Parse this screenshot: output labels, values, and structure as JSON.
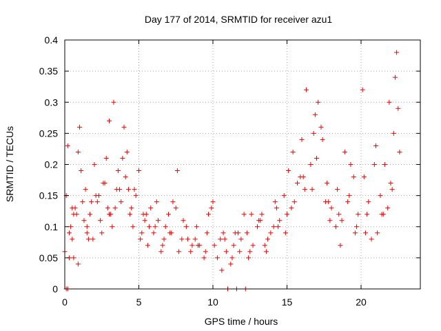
{
  "chart_data": {
    "type": "scatter",
    "title": "Day 177 of 2014, SRMTID for receiver azu1",
    "xlabel": "GPS time / hours",
    "ylabel": "SRMTID / TECUs",
    "xlim": [
      0,
      24
    ],
    "ylim": [
      0,
      0.4
    ],
    "x_ticks": [
      0,
      5,
      10,
      15,
      20
    ],
    "x_tick_labels": [
      "0",
      "5",
      "10",
      "15",
      "20"
    ],
    "y_ticks": [
      0,
      0.05,
      0.1,
      0.15,
      0.2,
      0.25,
      0.3,
      0.35,
      0.4
    ],
    "y_tick_labels": [
      "0",
      "0.05",
      "0.1",
      "0.15",
      "0.2",
      "0.25",
      "0.3",
      "0.35",
      "0.4"
    ],
    "grid": true,
    "marker": "+",
    "color": "#ee0000",
    "series": [
      {
        "name": "SRMTID",
        "x": [
          0.0,
          0.1,
          0.2,
          0.3,
          0.4,
          0.5,
          0.6,
          0.8,
          0.9,
          1.0,
          1.2,
          1.4,
          1.5,
          1.7,
          1.9,
          2.0,
          2.2,
          2.4,
          2.6,
          2.8,
          3.0,
          3.1,
          3.3,
          3.5,
          3.6,
          3.8,
          4.0,
          4.2,
          4.4,
          4.6,
          4.8,
          5.0,
          5.2,
          5.4,
          5.6,
          5.8,
          6.0,
          6.2,
          6.5,
          6.8,
          7.0,
          7.3,
          7.6,
          7.9,
          8.2,
          8.5,
          8.8,
          9.1,
          9.4,
          9.7,
          10.0,
          10.3,
          10.6,
          10.9,
          11.2,
          11.5,
          11.8,
          12.1,
          12.4,
          12.7,
          13.0,
          13.3,
          13.6,
          13.9,
          14.2,
          14.5,
          14.8,
          15.1,
          15.4,
          15.7,
          16.0,
          16.3,
          16.6,
          16.9,
          17.1,
          17.4,
          17.7,
          18.0,
          18.3,
          18.6,
          18.9,
          19.2,
          19.5,
          19.8,
          20.1,
          20.4,
          20.7,
          21.0,
          21.3,
          21.6,
          21.9,
          22.2,
          22.4,
          0.3,
          0.6,
          0.9,
          1.3,
          1.6,
          2.1,
          2.5,
          2.9,
          3.2,
          3.7,
          4.1,
          4.5,
          5.1,
          5.5,
          6.1,
          6.6,
          7.1,
          7.7,
          8.3,
          8.9,
          9.5,
          10.1,
          10.7,
          11.3,
          11.9,
          12.5,
          13.1,
          13.7,
          14.3,
          14.9,
          15.5,
          16.1,
          16.7,
          17.3,
          17.9,
          18.5,
          19.1,
          19.7,
          20.3,
          20.9,
          21.5,
          22.1,
          22.3,
          0.5,
          1.1,
          1.8,
          2.7,
          3.4,
          4.3,
          5.3,
          6.3,
          7.2,
          8.0,
          9.0,
          9.9,
          10.8,
          11.7,
          12.6,
          13.5,
          14.4,
          15.3,
          16.2,
          17.0,
          17.8,
          18.7,
          19.6,
          20.5,
          21.4,
          22.0,
          22.5,
          0.7,
          1.5,
          2.3,
          3.0,
          3.9,
          4.7,
          5.7,
          6.7,
          7.5,
          8.6,
          9.6,
          10.5,
          11.4,
          12.3,
          13.2,
          14.1,
          15.0,
          15.9,
          16.8,
          17.6,
          18.4,
          19.3,
          20.2,
          21.1,
          21.8,
          22.6,
          0.1,
          0.2,
          11.0,
          11.6,
          12.2
        ],
        "y": [
          0.06,
          0.15,
          0.23,
          0.05,
          0.1,
          0.13,
          0.05,
          0.12,
          0.22,
          0.26,
          0.14,
          0.16,
          0.1,
          0.12,
          0.08,
          0.2,
          0.14,
          0.11,
          0.17,
          0.21,
          0.27,
          0.12,
          0.3,
          0.16,
          0.19,
          0.14,
          0.26,
          0.22,
          0.12,
          0.1,
          0.15,
          0.19,
          0.09,
          0.11,
          0.07,
          0.13,
          0.09,
          0.14,
          0.06,
          0.1,
          0.12,
          0.14,
          0.19,
          0.08,
          0.1,
          0.06,
          0.08,
          0.07,
          0.05,
          0.12,
          0.14,
          0.05,
          0.03,
          0.06,
          0.04,
          0.09,
          0.06,
          0.12,
          0.05,
          0.07,
          0.1,
          0.12,
          0.06,
          0.09,
          0.14,
          0.11,
          0.15,
          0.19,
          0.22,
          0.17,
          0.24,
          0.32,
          0.2,
          0.28,
          0.3,
          0.24,
          0.17,
          0.13,
          0.1,
          0.07,
          0.22,
          0.15,
          0.18,
          0.12,
          0.32,
          0.12,
          0.08,
          0.23,
          0.15,
          0.2,
          0.3,
          0.25,
          0.38,
          0.09,
          0.12,
          0.04,
          0.11,
          0.08,
          0.15,
          0.09,
          0.13,
          0.1,
          0.16,
          0.18,
          0.13,
          0.08,
          0.12,
          0.1,
          0.07,
          0.09,
          0.06,
          0.08,
          0.1,
          0.06,
          0.07,
          0.09,
          0.05,
          0.08,
          0.06,
          0.11,
          0.08,
          0.13,
          0.09,
          0.14,
          0.18,
          0.16,
          0.26,
          0.11,
          0.12,
          0.14,
          0.1,
          0.09,
          0.2,
          0.12,
          0.16,
          0.34,
          0.08,
          0.19,
          0.14,
          0.17,
          0.13,
          0.16,
          0.12,
          0.11,
          0.09,
          0.11,
          0.07,
          0.13,
          0.08,
          0.09,
          0.12,
          0.07,
          0.1,
          0.13,
          0.16,
          0.21,
          0.14,
          0.11,
          0.09,
          0.14,
          0.12,
          0.17,
          0.29,
          0.13,
          0.09,
          0.15,
          0.12,
          0.21,
          0.16,
          0.1,
          0.08,
          0.13,
          0.07,
          0.09,
          0.08,
          0.07,
          0.09,
          0.11,
          0.1,
          0.12,
          0.18,
          0.25,
          0.14,
          0.16,
          0.2,
          0.18,
          0.09,
          0.13,
          0.22,
          0,
          0,
          0,
          0,
          0
        ]
      }
    ]
  }
}
